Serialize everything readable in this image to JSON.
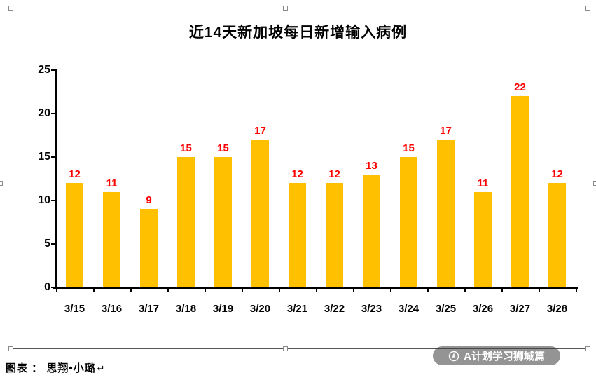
{
  "page": {
    "caption": "图表 ： 思翔•小璐",
    "return_mark": "↵",
    "watermark_text": "A计划学习狮城篇"
  },
  "chart_data": {
    "type": "bar",
    "title": "近14天新加坡每日新增输入病例",
    "categories": [
      "3/15",
      "3/16",
      "3/17",
      "3/18",
      "3/19",
      "3/20",
      "3/21",
      "3/22",
      "3/23",
      "3/24",
      "3/25",
      "3/26",
      "3/27",
      "3/28"
    ],
    "values": [
      12,
      11,
      9,
      15,
      15,
      17,
      12,
      12,
      13,
      15,
      17,
      11,
      22,
      12
    ],
    "xlabel": "",
    "ylabel": "",
    "ylim": [
      0,
      25
    ],
    "yticks": [
      0,
      5,
      10,
      15,
      20,
      25
    ],
    "grid": false,
    "legend": "none",
    "colors": {
      "bar": "#FFC000",
      "value_label": "#FF0000",
      "axis": "#000000"
    }
  }
}
